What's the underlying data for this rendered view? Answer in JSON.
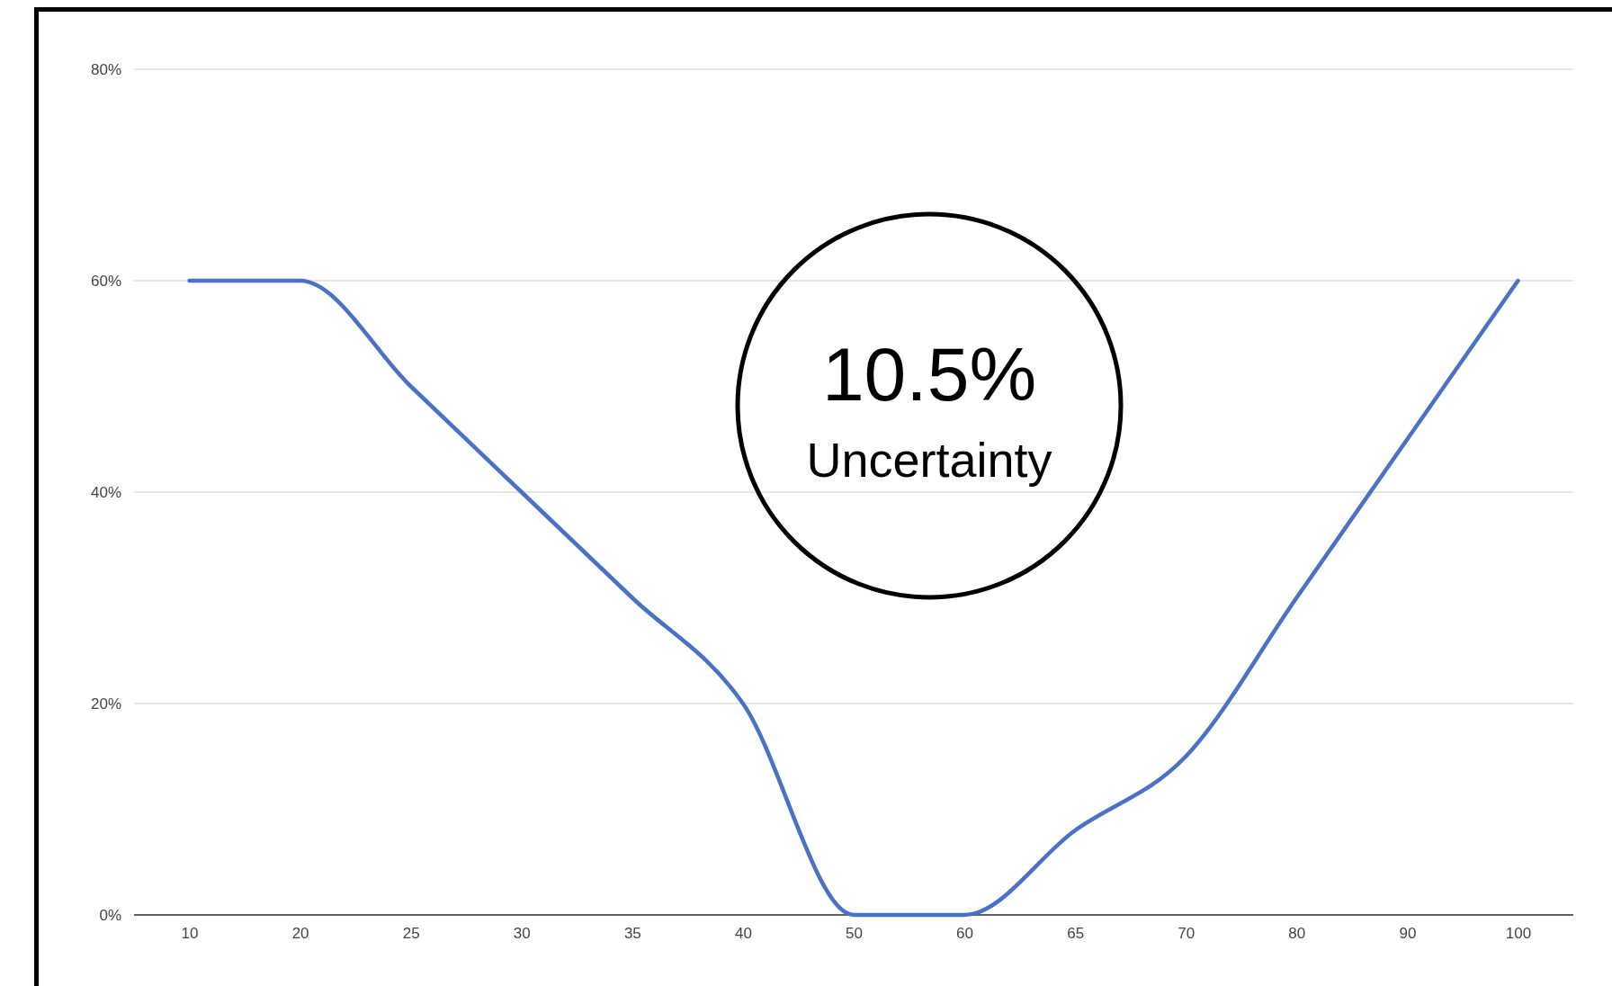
{
  "chart_data": {
    "type": "line",
    "categories": [
      "10",
      "20",
      "25",
      "30",
      "35",
      "40",
      "50",
      "60",
      "65",
      "70",
      "80",
      "90",
      "100"
    ],
    "series": [
      {
        "color": "#4a72c4",
        "values": [
          60,
          60,
          50,
          40,
          30,
          20,
          0,
          0,
          8,
          15,
          30,
          45,
          60
        ]
      }
    ],
    "ylim": [
      0,
      80
    ],
    "yticks": [
      {
        "value": 0,
        "label": "0%"
      },
      {
        "value": 20,
        "label": "20%"
      },
      {
        "value": 40,
        "label": "40%"
      },
      {
        "value": 60,
        "label": "60%"
      },
      {
        "value": 80,
        "label": "80%"
      }
    ],
    "grid": "y",
    "annotations": [
      "10.5%",
      "Uncertainty"
    ]
  }
}
